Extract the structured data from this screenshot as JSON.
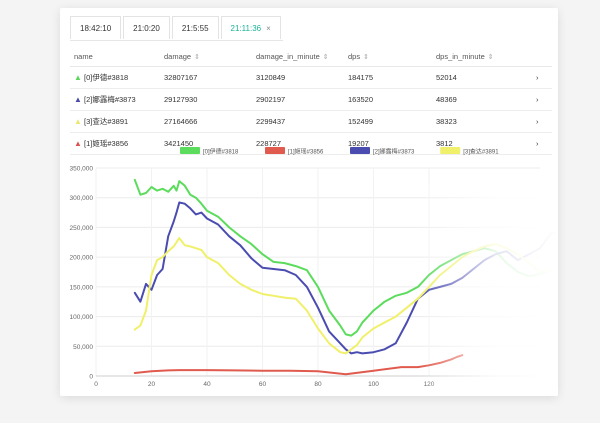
{
  "tabs": [
    {
      "label": "18:42:10",
      "active": false
    },
    {
      "label": "21:0:20",
      "active": false
    },
    {
      "label": "21:5:55",
      "active": false
    },
    {
      "label": "21:11:36",
      "active": true,
      "close": "×"
    }
  ],
  "table": {
    "headers": [
      {
        "label": "name",
        "sort": ""
      },
      {
        "label": "damage",
        "sort": "⇕"
      },
      {
        "label": "damage_in_minute",
        "sort": "⇕"
      },
      {
        "label": "dps",
        "sort": "⇕"
      },
      {
        "label": "dps_in_minute",
        "sort": "⇕"
      }
    ],
    "rows": [
      {
        "name": "[0]伊德#3818",
        "color": "#5cd65c",
        "damage": "32807167",
        "damage_in_minute": "3120849",
        "dps": "184175",
        "dps_in_minute": "52014",
        "chevron": "›"
      },
      {
        "name": "[2]娜露梅#3873",
        "color": "#4a4aa8",
        "damage": "29127930",
        "damage_in_minute": "2902197",
        "dps": "163520",
        "dps_in_minute": "48369",
        "chevron": "›"
      },
      {
        "name": "[3]查达#3891",
        "color": "#e8e870",
        "damage": "27164666",
        "damage_in_minute": "2299437",
        "dps": "152499",
        "dps_in_minute": "38323",
        "chevron": "›"
      },
      {
        "name": "[1]姬瑶#3856",
        "color": "#d9534f",
        "damage": "3421450",
        "damage_in_minute": "228727",
        "dps": "19207",
        "dps_in_minute": "3812",
        "chevron": "›"
      }
    ]
  },
  "chart_data": {
    "type": "line",
    "title": "",
    "xlabel": "",
    "ylabel": "",
    "xlim": [
      0,
      160
    ],
    "ylim": [
      0,
      350000
    ],
    "xticks": [
      0,
      20,
      40,
      60,
      80,
      100,
      120
    ],
    "yticks": [
      0,
      50000,
      100000,
      150000,
      200000,
      250000,
      300000,
      350000
    ],
    "ytick_labels": [
      "0",
      "50,000",
      "100,000",
      "150,000",
      "200,000",
      "250,000",
      "300,000",
      "350,000"
    ],
    "grid": true,
    "legend_position": "top",
    "series": [
      {
        "name": "[0]伊德#3818",
        "color": "#5cdc5c",
        "x": [
          14,
          16,
          18,
          20,
          22,
          24,
          26,
          28,
          29,
          30,
          32,
          34,
          36,
          38,
          40,
          44,
          48,
          52,
          56,
          60,
          64,
          68,
          72,
          76,
          80,
          84,
          88,
          90,
          92,
          94,
          96,
          98,
          100,
          104,
          108,
          112,
          116,
          120,
          124,
          128,
          132,
          136,
          140,
          144,
          148,
          152,
          156,
          160,
          164,
          168
        ],
        "y": [
          330000,
          305000,
          308000,
          318000,
          312000,
          315000,
          310000,
          320000,
          312000,
          328000,
          320000,
          305000,
          300000,
          290000,
          278000,
          268000,
          250000,
          235000,
          222000,
          205000,
          192000,
          190000,
          185000,
          178000,
          150000,
          110000,
          85000,
          70000,
          68000,
          75000,
          90000,
          100000,
          110000,
          125000,
          135000,
          140000,
          150000,
          170000,
          185000,
          195000,
          205000,
          210000,
          215000,
          210000,
          190000,
          175000,
          168000,
          172000,
          178000,
          190000
        ]
      },
      {
        "name": "[1]姬瑶#3856",
        "color": "#e05a4e",
        "x": [
          14,
          20,
          26,
          30,
          36,
          40,
          50,
          60,
          70,
          80,
          90,
          100,
          110,
          116,
          120,
          124,
          128,
          130,
          132
        ],
        "y": [
          5000,
          8000,
          9500,
          10000,
          10000,
          10000,
          9500,
          9000,
          9000,
          8000,
          3000,
          9000,
          15000,
          15000,
          18000,
          22000,
          28000,
          32000,
          35000
        ]
      },
      {
        "name": "[2]娜露梅#3873",
        "color": "#4a4cb0",
        "x": [
          14,
          16,
          18,
          20,
          22,
          24,
          26,
          28,
          29,
          30,
          32,
          34,
          36,
          38,
          40,
          44,
          48,
          52,
          56,
          60,
          64,
          68,
          72,
          76,
          80,
          84,
          88,
          90,
          92,
          94,
          96,
          100,
          104,
          108,
          112,
          116,
          120,
          124,
          128,
          132,
          136,
          140,
          144,
          148,
          152,
          156,
          160,
          164,
          168,
          170
        ],
        "y": [
          140000,
          125000,
          155000,
          145000,
          170000,
          180000,
          235000,
          260000,
          275000,
          292000,
          290000,
          282000,
          272000,
          275000,
          265000,
          255000,
          235000,
          220000,
          198000,
          182000,
          180000,
          178000,
          170000,
          150000,
          115000,
          75000,
          55000,
          45000,
          38000,
          40000,
          38000,
          40000,
          45000,
          55000,
          90000,
          130000,
          145000,
          150000,
          155000,
          165000,
          180000,
          195000,
          205000,
          210000,
          195000,
          205000,
          215000,
          240000,
          245000,
          218000
        ]
      },
      {
        "name": "[3]查达#3891",
        "color": "#f0f06a",
        "x": [
          14,
          16,
          18,
          20,
          22,
          24,
          26,
          28,
          30,
          32,
          34,
          36,
          38,
          40,
          44,
          48,
          52,
          56,
          60,
          64,
          68,
          72,
          76,
          80,
          84,
          88,
          90,
          92,
          94,
          96,
          100,
          104,
          108,
          112,
          116,
          120,
          124,
          128,
          132,
          136,
          140,
          144,
          148,
          152,
          156,
          160,
          164,
          168
        ],
        "y": [
          78000,
          85000,
          110000,
          170000,
          195000,
          200000,
          210000,
          218000,
          232000,
          220000,
          218000,
          215000,
          212000,
          200000,
          190000,
          170000,
          155000,
          145000,
          138000,
          135000,
          132000,
          130000,
          110000,
          80000,
          55000,
          40000,
          38000,
          45000,
          52000,
          65000,
          80000,
          90000,
          100000,
          115000,
          130000,
          150000,
          170000,
          185000,
          200000,
          210000,
          218000,
          222000,
          215000,
          205000,
          190000,
          175000,
          180000,
          185000
        ]
      }
    ]
  }
}
